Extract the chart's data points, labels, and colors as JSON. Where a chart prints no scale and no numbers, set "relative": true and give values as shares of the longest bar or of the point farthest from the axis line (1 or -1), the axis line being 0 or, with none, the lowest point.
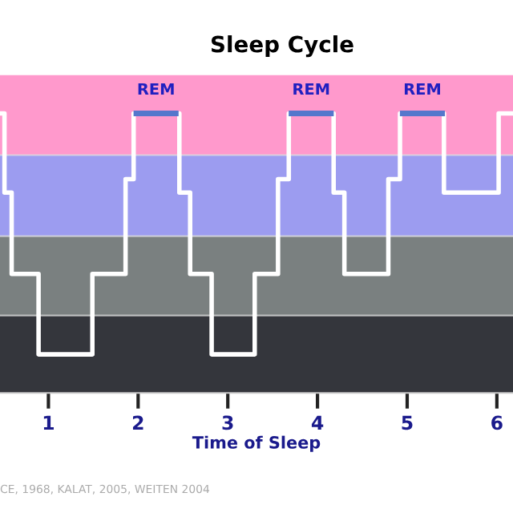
{
  "chart_data": {
    "type": "step",
    "title": "Sleep Cycle",
    "xlabel": "Time of Sleep",
    "relative": true,
    "x": [
      0.46,
      0.51,
      0.59,
      0.89,
      1.49,
      1.86,
      1.95,
      2.46,
      2.58,
      2.82,
      3.3,
      3.56,
      3.68,
      4.18,
      4.3,
      4.79,
      4.92,
      5.41,
      6.02,
      6.18
    ],
    "series": [
      {
        "color": "#ffffff",
        "values": [
          1,
          0.717,
          0.426,
          0.138,
          0.426,
          0.765,
          1,
          0.717,
          0.426,
          0.138,
          0.426,
          0.765,
          1,
          0.717,
          0.426,
          0.765,
          1,
          0.717,
          1,
          1
        ]
      }
    ],
    "xlim": [
      0.46,
      6.18
    ],
    "xticks": [
      1,
      2,
      3,
      4,
      5,
      6
    ],
    "bands": [
      {
        "axis": "y",
        "from": 0.851,
        "to": 1.138,
        "color": "#ff99cc"
      },
      {
        "axis": "y",
        "from": 0.561,
        "to": 0.851,
        "color": "#9c9cf0"
      },
      {
        "axis": "y",
        "from": 0.277,
        "to": 0.561,
        "color": "#7a8080"
      },
      {
        "axis": "y",
        "from": 0,
        "to": 0.277,
        "color": "#34363c"
      }
    ],
    "annotations": [
      {
        "text": "REM",
        "x": 2.2,
        "y": 1
      },
      {
        "text": "REM",
        "x": 3.93,
        "y": 1
      },
      {
        "text": "REM",
        "x": 5.17,
        "y": 1
      },
      "CE, 1968, KALAT, 2005, WEITEN 2004"
    ],
    "grid": false,
    "line_style": "solid",
    "marker": "none"
  }
}
